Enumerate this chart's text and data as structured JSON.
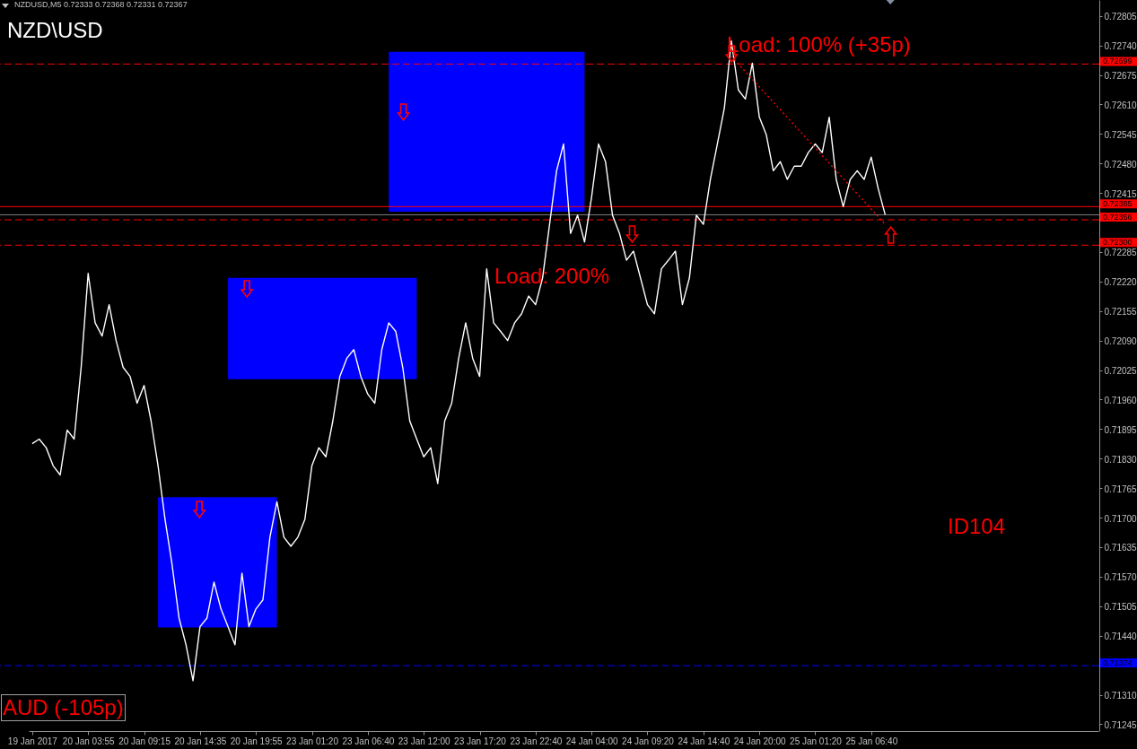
{
  "chart_data": {
    "type": "line",
    "title": "NZD\\USD",
    "subtitle": "NZDUSD,M5  0.72333 0.72368 0.72331 0.72367",
    "categories": [
      "19 Jan 2017",
      null,
      null,
      null,
      null,
      null,
      null,
      null,
      "20 Jan 03:55",
      null,
      null,
      null,
      null,
      null,
      null,
      null,
      "20 Jan 09:15",
      null,
      null,
      null,
      null,
      null,
      null,
      null,
      "20 Jan 14:35",
      null,
      null,
      null,
      null,
      null,
      null,
      null,
      "20 Jan 19:55",
      null,
      null,
      null,
      null,
      null,
      null,
      null,
      "23 Jan 01:20",
      null,
      null,
      null,
      null,
      null,
      null,
      null,
      "23 Jan 06:40",
      null,
      null,
      null,
      null,
      null,
      null,
      null,
      "23 Jan 12:00",
      null,
      null,
      null,
      null,
      null,
      null,
      null,
      "23 Jan 17:20",
      null,
      null,
      null,
      null,
      null,
      null,
      null,
      "23 Jan 22:40",
      null,
      null,
      null,
      null,
      null,
      null,
      null,
      "24 Jan 04:00",
      null,
      null,
      null,
      null,
      null,
      null,
      null,
      "24 Jan 09:20",
      null,
      null,
      null,
      null,
      null,
      null,
      null,
      "24 Jan 14:40",
      null,
      null,
      null,
      null,
      null,
      null,
      null,
      "24 Jan 20:00",
      null,
      null,
      null,
      null,
      null,
      null,
      null,
      "25 Jan 01:20",
      null,
      null,
      null,
      null,
      null,
      null,
      null,
      "25 Jan 06:40",
      null,
      null,
      null,
      null,
      null,
      null,
      null,
      null,
      null,
      null,
      null,
      null,
      null,
      null,
      null,
      null,
      null,
      null,
      null,
      null,
      null,
      null,
      null,
      null,
      null,
      null,
      null,
      null,
      null,
      null,
      null,
      null
    ],
    "series": [
      {
        "color": "#ffffff",
        "values": [
          0.71863,
          0.71873,
          0.71854,
          0.71814,
          0.71794,
          0.71893,
          0.71873,
          0.72031,
          0.72238,
          0.72129,
          0.721,
          0.72169,
          0.7209,
          0.72031,
          0.72011,
          0.71952,
          0.71991,
          0.71913,
          0.71814,
          0.71696,
          0.71597,
          0.71479,
          0.7142,
          0.71341,
          0.7146,
          0.71479,
          0.71558,
          0.71499,
          0.7146,
          0.7142,
          0.71578,
          0.7146,
          0.71499,
          0.71519,
          0.71657,
          0.71735,
          0.71657,
          0.71637,
          0.71657,
          0.71696,
          0.71814,
          0.71854,
          0.71834,
          0.71913,
          0.72011,
          0.72051,
          0.7207,
          0.72011,
          0.71972,
          0.71952,
          0.7207,
          0.72129,
          0.7211,
          0.72031,
          0.71913,
          0.71873,
          0.71834,
          0.71854,
          0.71775,
          0.71913,
          0.71952,
          0.72051,
          0.72129,
          0.72051,
          0.72011,
          0.72248,
          0.72129,
          0.7211,
          0.7209,
          0.72129,
          0.72149,
          0.72188,
          0.72169,
          0.72228,
          0.72346,
          0.72464,
          0.72523,
          0.72326,
          0.72366,
          0.72307,
          0.72405,
          0.72523,
          0.72484,
          0.72366,
          0.72326,
          0.72267,
          0.72287,
          0.72228,
          0.72169,
          0.72149,
          0.72248,
          0.72267,
          0.72287,
          0.72169,
          0.72228,
          0.72366,
          0.72346,
          0.72445,
          0.72523,
          0.72602,
          0.7275,
          0.72642,
          0.72622,
          0.72701,
          0.72582,
          0.72543,
          0.72464,
          0.72484,
          0.72445,
          0.72474,
          0.72474,
          0.72504,
          0.72523,
          0.72504,
          0.72582,
          0.72445,
          0.72385,
          0.72445,
          0.72464,
          0.72445,
          0.72494,
          0.72425,
          0.72367,
          null,
          null,
          null,
          null,
          null,
          null,
          null,
          null,
          null,
          null,
          null,
          null,
          null,
          null,
          null,
          null,
          null,
          null,
          null,
          null,
          null,
          null,
          null,
          null,
          null,
          null,
          null,
          null,
          null,
          null
        ]
      },
      {
        "type": "line",
        "color": "#ff0000",
        "line_style": "dotted",
        "values": [
          null,
          null,
          null,
          null,
          null,
          null,
          null,
          null,
          null,
          null,
          null,
          null,
          null,
          null,
          null,
          null,
          null,
          null,
          null,
          null,
          null,
          null,
          null,
          null,
          null,
          null,
          null,
          null,
          null,
          null,
          null,
          null,
          null,
          null,
          null,
          null,
          null,
          null,
          null,
          null,
          null,
          null,
          null,
          null,
          null,
          null,
          null,
          null,
          null,
          null,
          null,
          null,
          null,
          null,
          null,
          null,
          null,
          null,
          null,
          null,
          null,
          null,
          null,
          null,
          null,
          null,
          null,
          null,
          null,
          null,
          null,
          null,
          null,
          null,
          null,
          null,
          null,
          null,
          null,
          null,
          null,
          null,
          null,
          null,
          null,
          null,
          null,
          null,
          null,
          null,
          null,
          null,
          null,
          null,
          null,
          null,
          null,
          null,
          null,
          null,
          0.72716,
          null,
          null,
          null,
          null,
          null,
          null,
          null,
          null,
          null,
          null,
          null,
          null,
          null,
          null,
          null,
          null,
          null,
          null,
          null,
          null,
          null,
          0.72346,
          null,
          null,
          null,
          null,
          null,
          null,
          null,
          null,
          null,
          null,
          null,
          null,
          null,
          null,
          null,
          null,
          null,
          null,
          null,
          null,
          null,
          null,
          null,
          null,
          null,
          null,
          null,
          null,
          null,
          null
        ]
      }
    ],
    "ylim": [
      0.7123,
      0.7284
    ],
    "yticks": [
      {
        "value": 0.71245,
        "label": "0.71245"
      },
      {
        "value": 0.7131,
        "label": "0.71310"
      },
      {
        "value": 0.7144,
        "label": "0.71440"
      },
      {
        "value": 0.71505,
        "label": "0.71505"
      },
      {
        "value": 0.7157,
        "label": "0.71570"
      },
      {
        "value": 0.71635,
        "label": "0.71635"
      },
      {
        "value": 0.717,
        "label": "0.71700"
      },
      {
        "value": 0.71765,
        "label": "0.71765"
      },
      {
        "value": 0.7183,
        "label": "0.71830"
      },
      {
        "value": 0.71895,
        "label": "0.71895"
      },
      {
        "value": 0.7196,
        "label": "0.71960"
      },
      {
        "value": 0.72025,
        "label": "0.72025"
      },
      {
        "value": 0.7209,
        "label": "0.72090"
      },
      {
        "value": 0.72155,
        "label": "0.72155"
      },
      {
        "value": 0.7222,
        "label": "0.72220"
      },
      {
        "value": 0.72285,
        "label": "0.72285"
      },
      {
        "value": 0.72415,
        "label": "0.72415"
      },
      {
        "value": 0.7248,
        "label": "0.72480"
      },
      {
        "value": 0.72545,
        "label": "0.72545"
      },
      {
        "value": 0.7261,
        "label": "0.72610"
      },
      {
        "value": 0.72675,
        "label": "0.72675"
      },
      {
        "value": 0.7274,
        "label": "0.72740"
      },
      {
        "value": 0.72805,
        "label": "0.72805"
      }
    ],
    "bands": [
      {
        "axis": "y",
        "from": 0.72374,
        "to": 0.72726,
        "color": "#0000ff"
      },
      {
        "axis": "y",
        "from": 0.72005,
        "to": 0.72228,
        "color": "#0000ff"
      },
      {
        "axis": "y",
        "from": 0.71458,
        "to": 0.71745,
        "color": "#0000ff"
      }
    ],
    "ref_lines": [
      {
        "axis": "y",
        "value": 0.72699,
        "label": "0.72699",
        "color": "#ff0000",
        "line_style": "dashed"
      },
      {
        "axis": "y",
        "value": 0.72385,
        "label": "0.72385",
        "color": "#ff0000",
        "line_style": "solid"
      },
      {
        "axis": "y",
        "value": 0.72367,
        "label": null,
        "color": "#808080",
        "line_style": "solid"
      },
      {
        "axis": "y",
        "value": 0.72356,
        "label": "0.72356",
        "color": "#ff0000",
        "line_style": "dashed"
      },
      {
        "axis": "y",
        "value": 0.723,
        "label": "0.72300",
        "color": "#ff0000",
        "line_style": "dashed"
      },
      {
        "axis": "y",
        "value": 0.71374,
        "label": "0.71374",
        "color": "#0000ff",
        "line_style": "dashed"
      }
    ],
    "annotations": [
      "Load: 100% (+35p)",
      "Load: 200%",
      "ID104",
      "AUD (-105p)"
    ],
    "grid": false,
    "marker": "none",
    "line_style": "solid"
  }
}
